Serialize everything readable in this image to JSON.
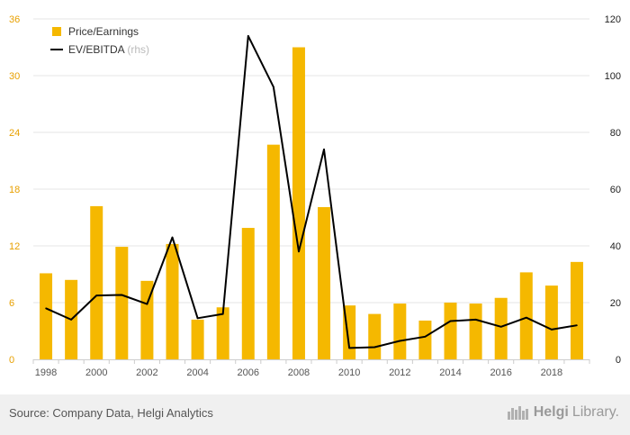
{
  "chart_data": {
    "type": "bar",
    "categories": [
      "1998",
      "1999",
      "2000",
      "2001",
      "2002",
      "2003",
      "2004",
      "2005",
      "2006",
      "2007",
      "2008",
      "2009",
      "2010",
      "2011",
      "2012",
      "2013",
      "2014",
      "2015",
      "2016",
      "2017",
      "2018",
      "2019"
    ],
    "x_tick_labels": [
      "1998",
      "2000",
      "2002",
      "2004",
      "2006",
      "2008",
      "2010",
      "2012",
      "2014",
      "2016",
      "2018"
    ],
    "series": [
      {
        "name": "Price/Earnings",
        "type": "bar",
        "axis": "left",
        "color": "#f5b800",
        "values": [
          9.1,
          8.4,
          16.2,
          11.9,
          8.3,
          12.2,
          4.2,
          5.5,
          13.9,
          22.7,
          33.0,
          16.1,
          5.7,
          4.8,
          5.9,
          4.1,
          6.0,
          5.9,
          6.5,
          9.2,
          7.8,
          10.3
        ]
      },
      {
        "name": "EV/EBITDA",
        "type": "line",
        "axis": "right",
        "color": "#000000",
        "values": [
          18,
          14,
          22.5,
          22.7,
          19.5,
          43,
          14.5,
          16,
          114,
          96,
          38,
          74,
          4,
          4.3,
          6.5,
          8,
          13.5,
          14,
          11.5,
          14.7,
          10.5,
          12
        ]
      }
    ],
    "legend": [
      {
        "label": "Price/Earnings"
      },
      {
        "label": "EV/EBITDA",
        "suffix": "(rhs)"
      }
    ],
    "left_axis": {
      "ylim": [
        0,
        36
      ],
      "ticks": [
        "0",
        "6",
        "12",
        "18",
        "24",
        "30",
        "36"
      ]
    },
    "right_axis": {
      "ylim": [
        0,
        120
      ],
      "ticks": [
        "0",
        "20",
        "40",
        "60",
        "80",
        "100",
        "120"
      ]
    },
    "grid": "horizontal",
    "legend_placement": "top-left"
  },
  "footer": {
    "source": "Source: Company Data, Helgi Analytics",
    "logo_brand": "Helgi",
    "logo_suffix": "Library."
  },
  "colors": {
    "bar": "#f5b800",
    "line": "#000000",
    "grid": "#e6e6e6",
    "left_tick": "#e8a000",
    "footer_bg": "#f0f0f0"
  }
}
